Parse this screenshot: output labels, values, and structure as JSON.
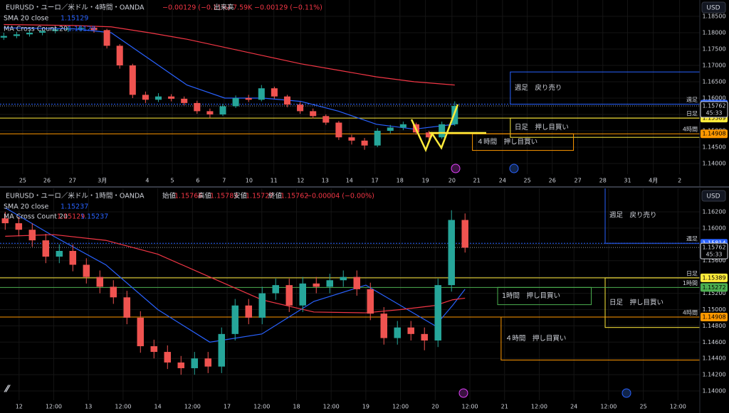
{
  "chart_data": [
    {
      "type": "candlestick",
      "title": "EURUSD・ユーロ／米ドル・4時間・OANDA",
      "change": "−0.00129 (−0.11%)",
      "volume_label": "出来高",
      "volume": "7.59K",
      "volume_change": "−0.00129 (−0.11%)",
      "indicators": [
        {
          "name": "SMA 20 close",
          "values": [
            1.15129
          ]
        },
        {
          "name": "MA Cross Count 20",
          "values": [
            1.15129
          ]
        }
      ],
      "currency": "USD",
      "up_color": "#26a69a",
      "down_color": "#ef5350",
      "candles": {
        "x": [
          -0.75,
          -0.24,
          0.27,
          0.78,
          1.29,
          1.8,
          2.31,
          2.82,
          3.33,
          3.84,
          4.35,
          4.86,
          5.37,
          5.88,
          6.39,
          6.9,
          7.41,
          7.92,
          8.43,
          8.94,
          9.45,
          9.96,
          10.47,
          10.98,
          11.49,
          12.0,
          12.51,
          13.02,
          13.53,
          14.04,
          14.55,
          15.06,
          15.57,
          16.08,
          16.59,
          17.1
        ],
        "open": [
          1.1785,
          1.179,
          1.1795,
          1.18,
          1.1805,
          1.181,
          1.1812,
          1.1815,
          1.1808,
          1.176,
          1.17,
          1.161,
          1.1595,
          1.1605,
          1.1598,
          1.1585,
          1.156,
          1.155,
          1.1575,
          1.16,
          1.1595,
          1.163,
          1.1605,
          1.158,
          1.156,
          1.1545,
          1.1525,
          1.148,
          1.147,
          1.1455,
          1.15,
          1.151,
          1.152,
          1.1495,
          1.148,
          1.152
        ],
        "high": [
          1.18,
          1.1803,
          1.1808,
          1.1812,
          1.1818,
          1.182,
          1.1822,
          1.182,
          1.1812,
          1.1765,
          1.1705,
          1.162,
          1.1615,
          1.1612,
          1.1605,
          1.1592,
          1.1568,
          1.1582,
          1.1608,
          1.161,
          1.164,
          1.1635,
          1.161,
          1.1588,
          1.1568,
          1.155,
          1.153,
          1.1488,
          1.1478,
          1.1508,
          1.1518,
          1.1528,
          1.1525,
          1.15,
          1.1528,
          1.159
        ],
        "low": [
          1.1778,
          1.1783,
          1.1788,
          1.1792,
          1.1798,
          1.1802,
          1.1804,
          1.18,
          1.1752,
          1.169,
          1.16,
          1.1585,
          1.1588,
          1.159,
          1.1578,
          1.1552,
          1.154,
          1.1545,
          1.157,
          1.1588,
          1.159,
          1.1598,
          1.1572,
          1.1552,
          1.1538,
          1.1518,
          1.1472,
          1.1458,
          1.1442,
          1.145,
          1.1492,
          1.1502,
          1.1488,
          1.1468,
          1.1475,
          1.1515
        ],
        "close": [
          1.179,
          1.1795,
          1.18,
          1.1805,
          1.181,
          1.1812,
          1.1815,
          1.1808,
          1.176,
          1.17,
          1.161,
          1.1595,
          1.1605,
          1.1598,
          1.1585,
          1.156,
          1.155,
          1.1575,
          1.16,
          1.1595,
          1.163,
          1.1605,
          1.158,
          1.156,
          1.1545,
          1.1525,
          1.148,
          1.147,
          1.1455,
          1.15,
          1.151,
          1.152,
          1.1495,
          1.148,
          1.152,
          1.1576
        ]
      },
      "series": [
        {
          "color": "#2962ff",
          "x": [
            -0.75,
            2,
            3.5,
            5,
            6.5,
            8,
            9.5,
            11,
            12.5,
            14,
            15.5,
            17.1
          ],
          "values": [
            1.1815,
            1.1812,
            1.18,
            1.172,
            1.164,
            1.16,
            1.16,
            1.159,
            1.156,
            1.152,
            1.1505,
            1.152
          ]
        },
        {
          "color": "#f23645",
          "x": [
            -0.75,
            2,
            3.5,
            5,
            6.5,
            8,
            9.5,
            11,
            12.5,
            14,
            15.5,
            17.1
          ],
          "values": [
            1.1825,
            1.1822,
            1.1818,
            1.18,
            1.178,
            1.1755,
            1.173,
            1.1705,
            1.1685,
            1.1665,
            1.165,
            1.164
          ]
        }
      ],
      "levels": [
        {
          "label": "週足",
          "value": 1.15814,
          "color": "#2962ff"
        },
        {
          "label": "日足",
          "value": 1.15389,
          "color": "#ffeb3b"
        },
        {
          "label": "4時間",
          "value": 1.14908,
          "color": "#ff9800"
        }
      ],
      "last_price": {
        "value": 1.15762,
        "countdown": "45:33"
      },
      "zones": [
        {
          "label": "週足　戻り売り",
          "x0": 19.3,
          "x1": 26.8,
          "top": 1.168,
          "bottom": 1.15814,
          "color": "#2962ff"
        },
        {
          "label": "日足　押し目買い",
          "x0": 19.3,
          "x1": 26.8,
          "top": 1.15389,
          "bottom": 1.148,
          "color": "#ffeb3b"
        },
        {
          "label": "４時間　押し目買い",
          "x0": 17.8,
          "x1": 21.8,
          "top": 1.14908,
          "bottom": 1.144,
          "color": "#ff9800"
        }
      ],
      "xlim": [
        -0.9,
        26.8
      ],
      "ylim": [
        1.13674,
        1.19
      ],
      "xticks": [
        {
          "value": 0,
          "label": "25"
        },
        {
          "value": 0.96,
          "label": "26"
        },
        {
          "value": 1.97,
          "label": "27"
        },
        {
          "value": 3.15,
          "label": "3月"
        },
        {
          "value": 4.93,
          "label": "4"
        },
        {
          "value": 5.92,
          "label": "5"
        },
        {
          "value": 6.93,
          "label": "6"
        },
        {
          "value": 7.97,
          "label": "7"
        },
        {
          "value": 8.96,
          "label": "10"
        },
        {
          "value": 9.94,
          "label": "11"
        },
        {
          "value": 11.0,
          "label": "12"
        },
        {
          "value": 11.97,
          "label": "13"
        },
        {
          "value": 12.93,
          "label": "14"
        },
        {
          "value": 13.94,
          "label": "17"
        },
        {
          "value": 14.93,
          "label": "18"
        },
        {
          "value": 15.94,
          "label": "19"
        },
        {
          "value": 16.99,
          "label": "20"
        },
        {
          "value": 17.97,
          "label": "21"
        },
        {
          "value": 18.99,
          "label": "24"
        },
        {
          "value": 19.97,
          "label": "25"
        },
        {
          "value": 20.96,
          "label": "26"
        },
        {
          "value": 21.97,
          "label": "27"
        },
        {
          "value": 22.96,
          "label": "28"
        },
        {
          "value": 23.94,
          "label": "31"
        },
        {
          "value": 24.96,
          "label": "4月"
        },
        {
          "value": 26.0,
          "label": "2"
        }
      ],
      "yticks": [
        {
          "value": 1.14,
          "label": "1.14000"
        },
        {
          "value": 1.145,
          "label": "1.14500"
        },
        {
          "value": 1.15,
          "label": "1.15000"
        },
        {
          "value": 1.155,
          "label": "1.15500"
        },
        {
          "value": 1.16,
          "label": "1.16000"
        },
        {
          "value": 1.165,
          "label": "1.16500"
        },
        {
          "value": 1.17,
          "label": "1.17000"
        },
        {
          "value": 1.175,
          "label": "1.17500"
        },
        {
          "value": 1.18,
          "label": "1.18000"
        },
        {
          "value": 1.185,
          "label": "1.18500"
        }
      ],
      "grid": true
    },
    {
      "type": "candlestick",
      "title": "EURUSD・ユーロ／米ドル・1時間・OANDA",
      "ohlc": [
        {
          "label": "始値",
          "value": 1.15766
        },
        {
          "label": "高値",
          "value": 1.15783
        },
        {
          "label": "安値",
          "value": 1.15727
        },
        {
          "label": "終値",
          "value": 1.15762
        }
      ],
      "change": "−0.00004 (−0.00%)",
      "indicators": [
        {
          "name": "SMA 20 close",
          "values": [
            1.15237
          ]
        },
        {
          "name": "MA Cross Count 20",
          "values": [
            1.15129,
            1.15237
          ]
        }
      ],
      "currency": "USD",
      "up_color": "#26a69a",
      "down_color": "#ef5350",
      "candles": {
        "x": [
          -0.4,
          -0.01,
          0.38,
          0.77,
          1.16,
          1.55,
          1.94,
          2.33,
          2.72,
          3.11,
          3.5,
          3.89,
          4.28,
          4.67,
          5.06,
          5.45,
          5.84,
          6.23,
          6.62,
          7.01,
          7.4,
          7.79,
          8.18,
          8.57,
          8.96,
          9.35,
          9.74,
          10.13,
          10.52,
          10.91,
          11.3,
          11.69,
          12.08,
          12.47,
          12.86
        ],
        "open": [
          1.1612,
          1.1606,
          1.1598,
          1.1585,
          1.1565,
          1.1572,
          1.1555,
          1.154,
          1.1528,
          1.1515,
          1.149,
          1.1455,
          1.1448,
          1.1435,
          1.1428,
          1.144,
          1.143,
          1.147,
          1.1505,
          1.149,
          1.152,
          1.153,
          1.1505,
          1.1532,
          1.1528,
          1.1536,
          1.154,
          1.1525,
          1.1495,
          1.1465,
          1.1478,
          1.147,
          1.1462,
          1.153,
          1.161
        ],
        "high": [
          1.162,
          1.1614,
          1.1606,
          1.1593,
          1.158,
          1.158,
          1.1563,
          1.1548,
          1.1536,
          1.1523,
          1.1498,
          1.1463,
          1.1456,
          1.1443,
          1.1448,
          1.1448,
          1.1478,
          1.1513,
          1.1513,
          1.1528,
          1.1538,
          1.1538,
          1.154,
          1.154,
          1.1544,
          1.1548,
          1.1548,
          1.1533,
          1.1503,
          1.1486,
          1.1486,
          1.1478,
          1.1538,
          1.1622,
          1.1618
        ],
        "low": [
          1.1598,
          1.159,
          1.1577,
          1.1557,
          1.1557,
          1.1547,
          1.1532,
          1.152,
          1.1507,
          1.1482,
          1.1447,
          1.144,
          1.1427,
          1.142,
          1.142,
          1.1422,
          1.1422,
          1.1462,
          1.1482,
          1.1482,
          1.1512,
          1.1497,
          1.1497,
          1.152,
          1.152,
          1.1528,
          1.1517,
          1.1487,
          1.1457,
          1.1457,
          1.1462,
          1.145,
          1.1454,
          1.1522,
          1.157
        ],
        "close": [
          1.1606,
          1.1598,
          1.1585,
          1.1565,
          1.1572,
          1.1555,
          1.154,
          1.1528,
          1.1515,
          1.149,
          1.1455,
          1.1448,
          1.1435,
          1.1428,
          1.144,
          1.143,
          1.147,
          1.1505,
          1.149,
          1.152,
          1.153,
          1.1505,
          1.1532,
          1.1528,
          1.1536,
          1.154,
          1.1525,
          1.1495,
          1.1465,
          1.1478,
          1.147,
          1.1462,
          1.153,
          1.161,
          1.1576
        ]
      },
      "series": [
        {
          "color": "#2962ff",
          "x": [
            -0.4,
            1,
            2.5,
            4,
            5.5,
            7,
            8.5,
            10,
            11,
            12,
            12.5,
            12.86
          ],
          "values": [
            1.1625,
            1.159,
            1.1555,
            1.15,
            1.146,
            1.147,
            1.151,
            1.153,
            1.1505,
            1.148,
            1.1505,
            1.1525
          ]
        },
        {
          "color": "#f23645",
          "x": [
            -0.4,
            1,
            2.5,
            4,
            5.5,
            7,
            8.5,
            10,
            11,
            12,
            12.5,
            12.86
          ],
          "values": [
            1.159,
            1.1592,
            1.1585,
            1.1568,
            1.154,
            1.1512,
            1.1497,
            1.1496,
            1.15,
            1.1505,
            1.1512,
            1.1514
          ]
        }
      ],
      "levels": [
        {
          "label": "週足",
          "value": 1.15814,
          "color": "#2962ff"
        },
        {
          "label": "日足",
          "value": 1.15389,
          "color": "#ffeb3b"
        },
        {
          "label": "1時間",
          "value": 1.15272,
          "color": "#4caf50"
        },
        {
          "label": "4時間",
          "value": 1.14908,
          "color": "#ff9800"
        }
      ],
      "last_price": {
        "value": 1.15762,
        "countdown": "45:33"
      },
      "zones": [
        {
          "label": "週足　戻り売り",
          "x0": 16.9,
          "x1": 19.63,
          "top": 1.165,
          "bottom": 1.15814,
          "color": "#2962ff"
        },
        {
          "label": "1時間　押し目買い",
          "x0": 13.8,
          "x1": 16.5,
          "top": 1.15272,
          "bottom": 1.1506,
          "color": "#4caf50"
        },
        {
          "label": "日足　押し目買い",
          "x0": 16.9,
          "x1": 19.63,
          "top": 1.15389,
          "bottom": 1.1478,
          "color": "#ffeb3b"
        },
        {
          "label": "４時間　押し目買い",
          "x0": 13.9,
          "x1": 19.63,
          "top": 1.14908,
          "bottom": 1.1438,
          "color": "#ff9800"
        }
      ],
      "xlim": [
        -0.55,
        19.63
      ],
      "ylim": [
        1.13887,
        1.16488
      ],
      "xticks": [
        {
          "value": 0,
          "label": "12"
        },
        {
          "value": 1,
          "label": "12:00"
        },
        {
          "value": 2,
          "label": "13"
        },
        {
          "value": 3,
          "label": "12:00"
        },
        {
          "value": 4,
          "label": "14"
        },
        {
          "value": 5,
          "label": "12:00"
        },
        {
          "value": 6,
          "label": "17"
        },
        {
          "value": 7,
          "label": "12:00"
        },
        {
          "value": 8,
          "label": "18"
        },
        {
          "value": 9,
          "label": "12:00"
        },
        {
          "value": 10,
          "label": "19"
        },
        {
          "value": 11,
          "label": "12:00"
        },
        {
          "value": 12,
          "label": "20"
        },
        {
          "value": 13,
          "label": "12:00"
        },
        {
          "value": 14,
          "label": "21"
        },
        {
          "value": 15,
          "label": "12:00"
        },
        {
          "value": 16,
          "label": "24"
        },
        {
          "value": 17,
          "label": "12:00"
        },
        {
          "value": 18,
          "label": "25"
        },
        {
          "value": 19,
          "label": "12:00"
        }
      ],
      "yticks": [
        {
          "value": 1.14,
          "label": "1.14000"
        },
        {
          "value": 1.142,
          "label": "1.14200"
        },
        {
          "value": 1.144,
          "label": "1.14400"
        },
        {
          "value": 1.146,
          "label": "1.14600"
        },
        {
          "value": 1.148,
          "label": "1.14800"
        },
        {
          "value": 1.15,
          "label": "1.15000"
        },
        {
          "value": 1.152,
          "label": "1.15200"
        },
        {
          "value": 1.154,
          "label": "1.15400"
        },
        {
          "value": 1.156,
          "label": "1.15600"
        },
        {
          "value": 1.158,
          "label": "1.15800"
        },
        {
          "value": 1.16,
          "label": "1.16000"
        },
        {
          "value": 1.162,
          "label": "1.16200"
        }
      ],
      "grid": true
    }
  ]
}
